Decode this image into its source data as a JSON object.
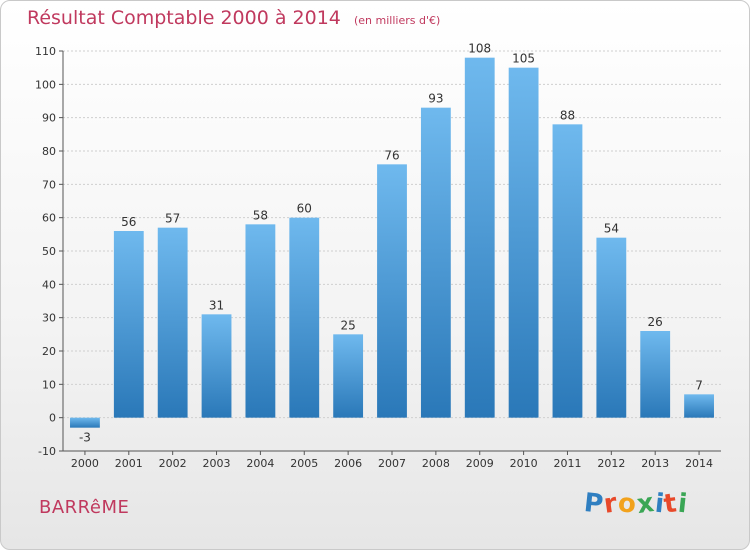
{
  "header": {
    "title": "Résultat Comptable 2000 à 2014",
    "subtitle": "(en milliers d'€)"
  },
  "footer": {
    "commune": "BARRêME",
    "logo_letters": [
      "P",
      "r",
      "o",
      "x",
      "i",
      "t",
      "i"
    ],
    "logo_colors": [
      "#2f7fc1",
      "#e8492a",
      "#f2a21c",
      "#3aa655",
      "#2f7fc1",
      "#e8492a",
      "#3aa655"
    ]
  },
  "colors": {
    "bar_top": "#6fb9ee",
    "bar_bottom": "#2a78b8",
    "title": "#c0395e",
    "grid": "#cfcfcf"
  },
  "chart_data": {
    "type": "bar",
    "categories": [
      "2000",
      "2001",
      "2002",
      "2003",
      "2004",
      "2005",
      "2006",
      "2007",
      "2008",
      "2009",
      "2010",
      "2011",
      "2012",
      "2013",
      "2014"
    ],
    "values": [
      -3,
      56,
      57,
      31,
      58,
      60,
      25,
      76,
      93,
      108,
      105,
      88,
      54,
      26,
      7
    ],
    "ylim": [
      -10,
      110
    ],
    "yticks": [
      -10,
      0,
      10,
      20,
      30,
      40,
      50,
      60,
      70,
      80,
      90,
      100,
      110
    ],
    "grid": true
  }
}
